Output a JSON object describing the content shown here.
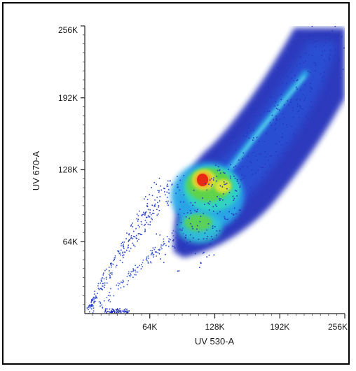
{
  "chart_data": {
    "type": "scatter",
    "subtype": "density-scatter",
    "title": "",
    "xlabel": "UV 530-A",
    "ylabel": "UV 670-A",
    "xlim": [
      0,
      262144
    ],
    "ylim": [
      0,
      262144
    ],
    "xticks": [
      {
        "value": 65536,
        "label": "64K"
      },
      {
        "value": 131072,
        "label": "128K"
      },
      {
        "value": 196608,
        "label": "192K"
      },
      {
        "value": 262144,
        "label": "256K"
      }
    ],
    "yticks": [
      {
        "value": 65536,
        "label": "64K"
      },
      {
        "value": 131072,
        "label": "128K"
      },
      {
        "value": 196608,
        "label": "192K"
      },
      {
        "value": 262144,
        "label": "256K"
      }
    ],
    "grid": false,
    "legend": "none",
    "colormap": [
      "#1a2bb8",
      "#2a52d8",
      "#2aa9e8",
      "#33d6c0",
      "#5fd34a",
      "#d8e23a",
      "#f0a020",
      "#e82a14"
    ],
    "density_regions": [
      {
        "name": "diagonal-band",
        "x_range": [
          85000,
          262144
        ],
        "y_range": [
          70000,
          262144
        ],
        "level": "low"
      },
      {
        "name": "main-population",
        "x_center": 119000,
        "y_center": 122000,
        "level": "peak"
      },
      {
        "name": "secondary-population",
        "x_center": 135000,
        "y_center": 117000,
        "level": "high"
      },
      {
        "name": "lower-lobe",
        "x_center": 110000,
        "y_center": 82000,
        "level": "medium"
      },
      {
        "name": "bright-ridge",
        "x_range": [
          140000,
          220000
        ],
        "y_range": [
          140000,
          215000
        ],
        "level": "medium-low"
      },
      {
        "name": "sparse-tail",
        "x_range": [
          0,
          100000
        ],
        "y_range": [
          0,
          125000
        ],
        "level": "very-low"
      },
      {
        "name": "baseline-cluster",
        "x_center": 30000,
        "y_center": 2000,
        "level": "low"
      }
    ]
  }
}
